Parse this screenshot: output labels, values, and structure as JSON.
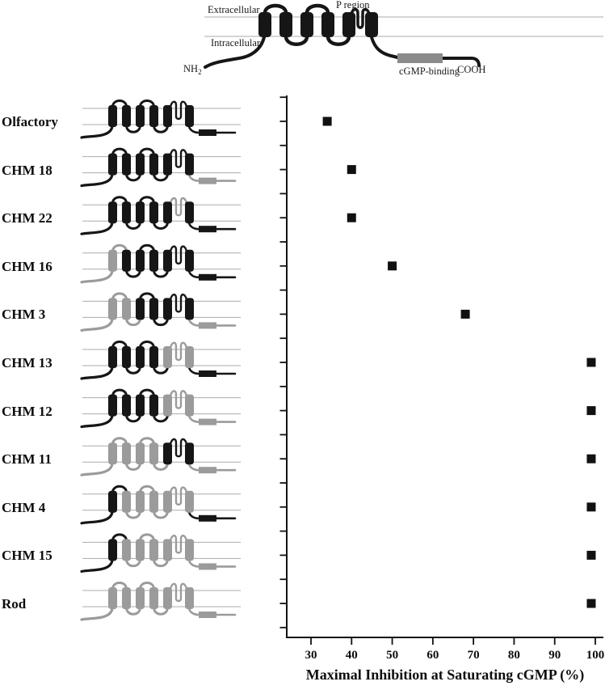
{
  "colors": {
    "black": "#161616",
    "gray": "#9b9b9b",
    "marker": "#111111",
    "cgmp_box_gray": "#8a8a8a"
  },
  "topology": {
    "extracellular_label": "Extracellular",
    "p_region_label": "P region",
    "intracellular_label": "Intracellular",
    "nh2_label": "NH",
    "nh2_subscript": "2",
    "cgmp_binding_label": "cGMP-binding",
    "cooh_label": "COOH"
  },
  "rows": [
    {
      "label": "Olfactory",
      "value": 34,
      "segments": [
        "k",
        "k",
        "k",
        "k",
        "k",
        "k"
      ],
      "pore": "k",
      "nterm": "k",
      "cterm": "k",
      "box": "k"
    },
    {
      "label": "CHM 18",
      "value": 40,
      "segments": [
        "k",
        "k",
        "k",
        "k",
        "k",
        "k"
      ],
      "pore": "k",
      "nterm": "k",
      "cterm": "g",
      "box": "g"
    },
    {
      "label": "CHM 22",
      "value": 40,
      "segments": [
        "k",
        "k",
        "k",
        "k",
        "k",
        "k"
      ],
      "pore": "g",
      "nterm": "k",
      "cterm": "k",
      "box": "k"
    },
    {
      "label": "CHM 16",
      "value": 50,
      "segments": [
        "g",
        "k",
        "k",
        "k",
        "k",
        "k"
      ],
      "pore": "k",
      "nterm": "g",
      "cterm": "k",
      "box": "k"
    },
    {
      "label": "CHM 3",
      "value": 68,
      "segments": [
        "g",
        "g",
        "k",
        "k",
        "k",
        "k"
      ],
      "pore": "k",
      "nterm": "g",
      "cterm": "g",
      "box": "g"
    },
    {
      "label": "CHM 13",
      "value": 99,
      "segments": [
        "k",
        "k",
        "k",
        "k",
        "g",
        "g"
      ],
      "pore": "g",
      "nterm": "k",
      "cterm": "k",
      "box": "k"
    },
    {
      "label": "CHM 12",
      "value": 99,
      "segments": [
        "k",
        "k",
        "k",
        "k",
        "g",
        "g"
      ],
      "pore": "g",
      "nterm": "k",
      "cterm": "g",
      "box": "g"
    },
    {
      "label": "CHM 11",
      "value": 99,
      "segments": [
        "g",
        "g",
        "g",
        "g",
        "k",
        "k"
      ],
      "pore": "k",
      "nterm": "g",
      "cterm": "g",
      "box": "g"
    },
    {
      "label": "CHM 4",
      "value": 99,
      "segments": [
        "k",
        "g",
        "g",
        "g",
        "g",
        "g"
      ],
      "pore": "g",
      "nterm": "k",
      "cterm": "k",
      "box": "k"
    },
    {
      "label": "CHM 15",
      "value": 99,
      "segments": [
        "k",
        "g",
        "g",
        "g",
        "g",
        "g"
      ],
      "pore": "g",
      "nterm": "k",
      "cterm": "g",
      "box": "g"
    },
    {
      "label": "Rod",
      "value": 99,
      "segments": [
        "g",
        "g",
        "g",
        "g",
        "g",
        "g"
      ],
      "pore": "g",
      "nterm": "g",
      "cterm": "g",
      "box": "g"
    }
  ],
  "chart": {
    "xlabel": "Maximal Inhibition at Saturating cGMP (%)",
    "x_ticks": [
      30,
      40,
      50,
      60,
      70,
      80,
      90,
      100
    ]
  },
  "chart_data": {
    "type": "scatter",
    "title": "",
    "categories": [
      "Olfactory",
      "CHM 18",
      "CHM 22",
      "CHM 16",
      "CHM 3",
      "CHM 13",
      "CHM 12",
      "CHM 11",
      "CHM 4",
      "CHM 15",
      "Rod"
    ],
    "values": [
      34,
      40,
      40,
      50,
      68,
      99,
      99,
      99,
      99,
      99,
      99
    ],
    "xlabel": "Maximal Inhibition at Saturating cGMP (%)",
    "ylabel": "",
    "xlim": [
      24,
      102
    ],
    "x_ticks": [
      30,
      40,
      50,
      60,
      70,
      80,
      90,
      100
    ],
    "marker": "filled-square",
    "marker_color": "#111111",
    "grid": false,
    "legend": false
  }
}
